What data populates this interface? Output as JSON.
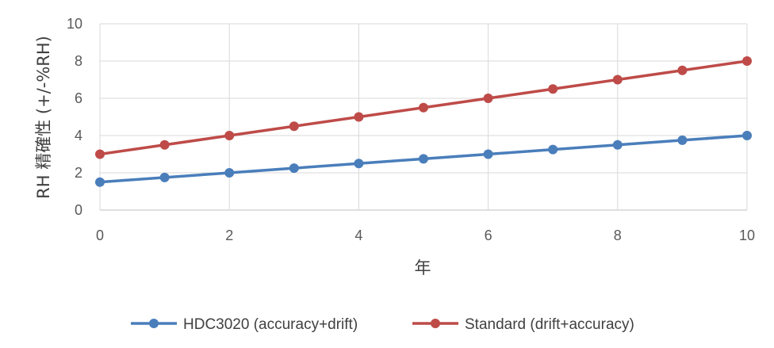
{
  "chart_data": {
    "type": "line",
    "title": "",
    "xlabel": "年",
    "ylabel": "RH 精確性 (+/-%RH)",
    "xlim": [
      0,
      10
    ],
    "ylim": [
      0,
      10
    ],
    "x_ticks": [
      0,
      2,
      4,
      6,
      8,
      10
    ],
    "y_ticks": [
      0,
      2,
      4,
      6,
      8,
      10
    ],
    "grid": true,
    "legend_position": "bottom",
    "x": [
      0,
      1,
      2,
      3,
      4,
      5,
      6,
      7,
      8,
      9,
      10
    ],
    "series": [
      {
        "name": "HDC3020 (accuracy+drift)",
        "color": "#4a7ebb",
        "values": [
          1.5,
          1.75,
          2.0,
          2.25,
          2.5,
          2.75,
          3.0,
          3.25,
          3.5,
          3.75,
          4.0
        ]
      },
      {
        "name": "Standard (drift+accuracy)",
        "color": "#be4b48",
        "values": [
          3.0,
          3.5,
          4.0,
          4.5,
          5.0,
          5.5,
          6.0,
          6.5,
          7.0,
          7.5,
          8.0
        ]
      }
    ]
  }
}
